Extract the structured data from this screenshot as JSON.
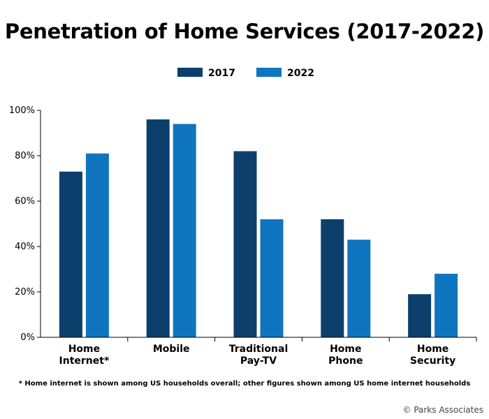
{
  "chart_data": {
    "type": "bar",
    "title": "Penetration of Home Services (2017-2022)",
    "categories": [
      "Home\nInternet*",
      "Mobile",
      "Traditional\nPay-TV",
      "Home\nPhone",
      "Home\nSecurity"
    ],
    "series": [
      {
        "name": "2017",
        "values": [
          73,
          96,
          82,
          52,
          19
        ],
        "color": "#0d3f6c"
      },
      {
        "name": "2022",
        "values": [
          81,
          94,
          52,
          43,
          28
        ],
        "color": "#0f75be"
      }
    ],
    "ylim": [
      0,
      100
    ],
    "yticks": [
      "0%",
      "20%",
      "40%",
      "60%",
      "80%",
      "100%"
    ],
    "legend_position": "top-center",
    "grid": false
  },
  "footnote": "* Home internet is shown among US households overall; other figures shown among US home internet households",
  "copyright": "© Parks Associates"
}
